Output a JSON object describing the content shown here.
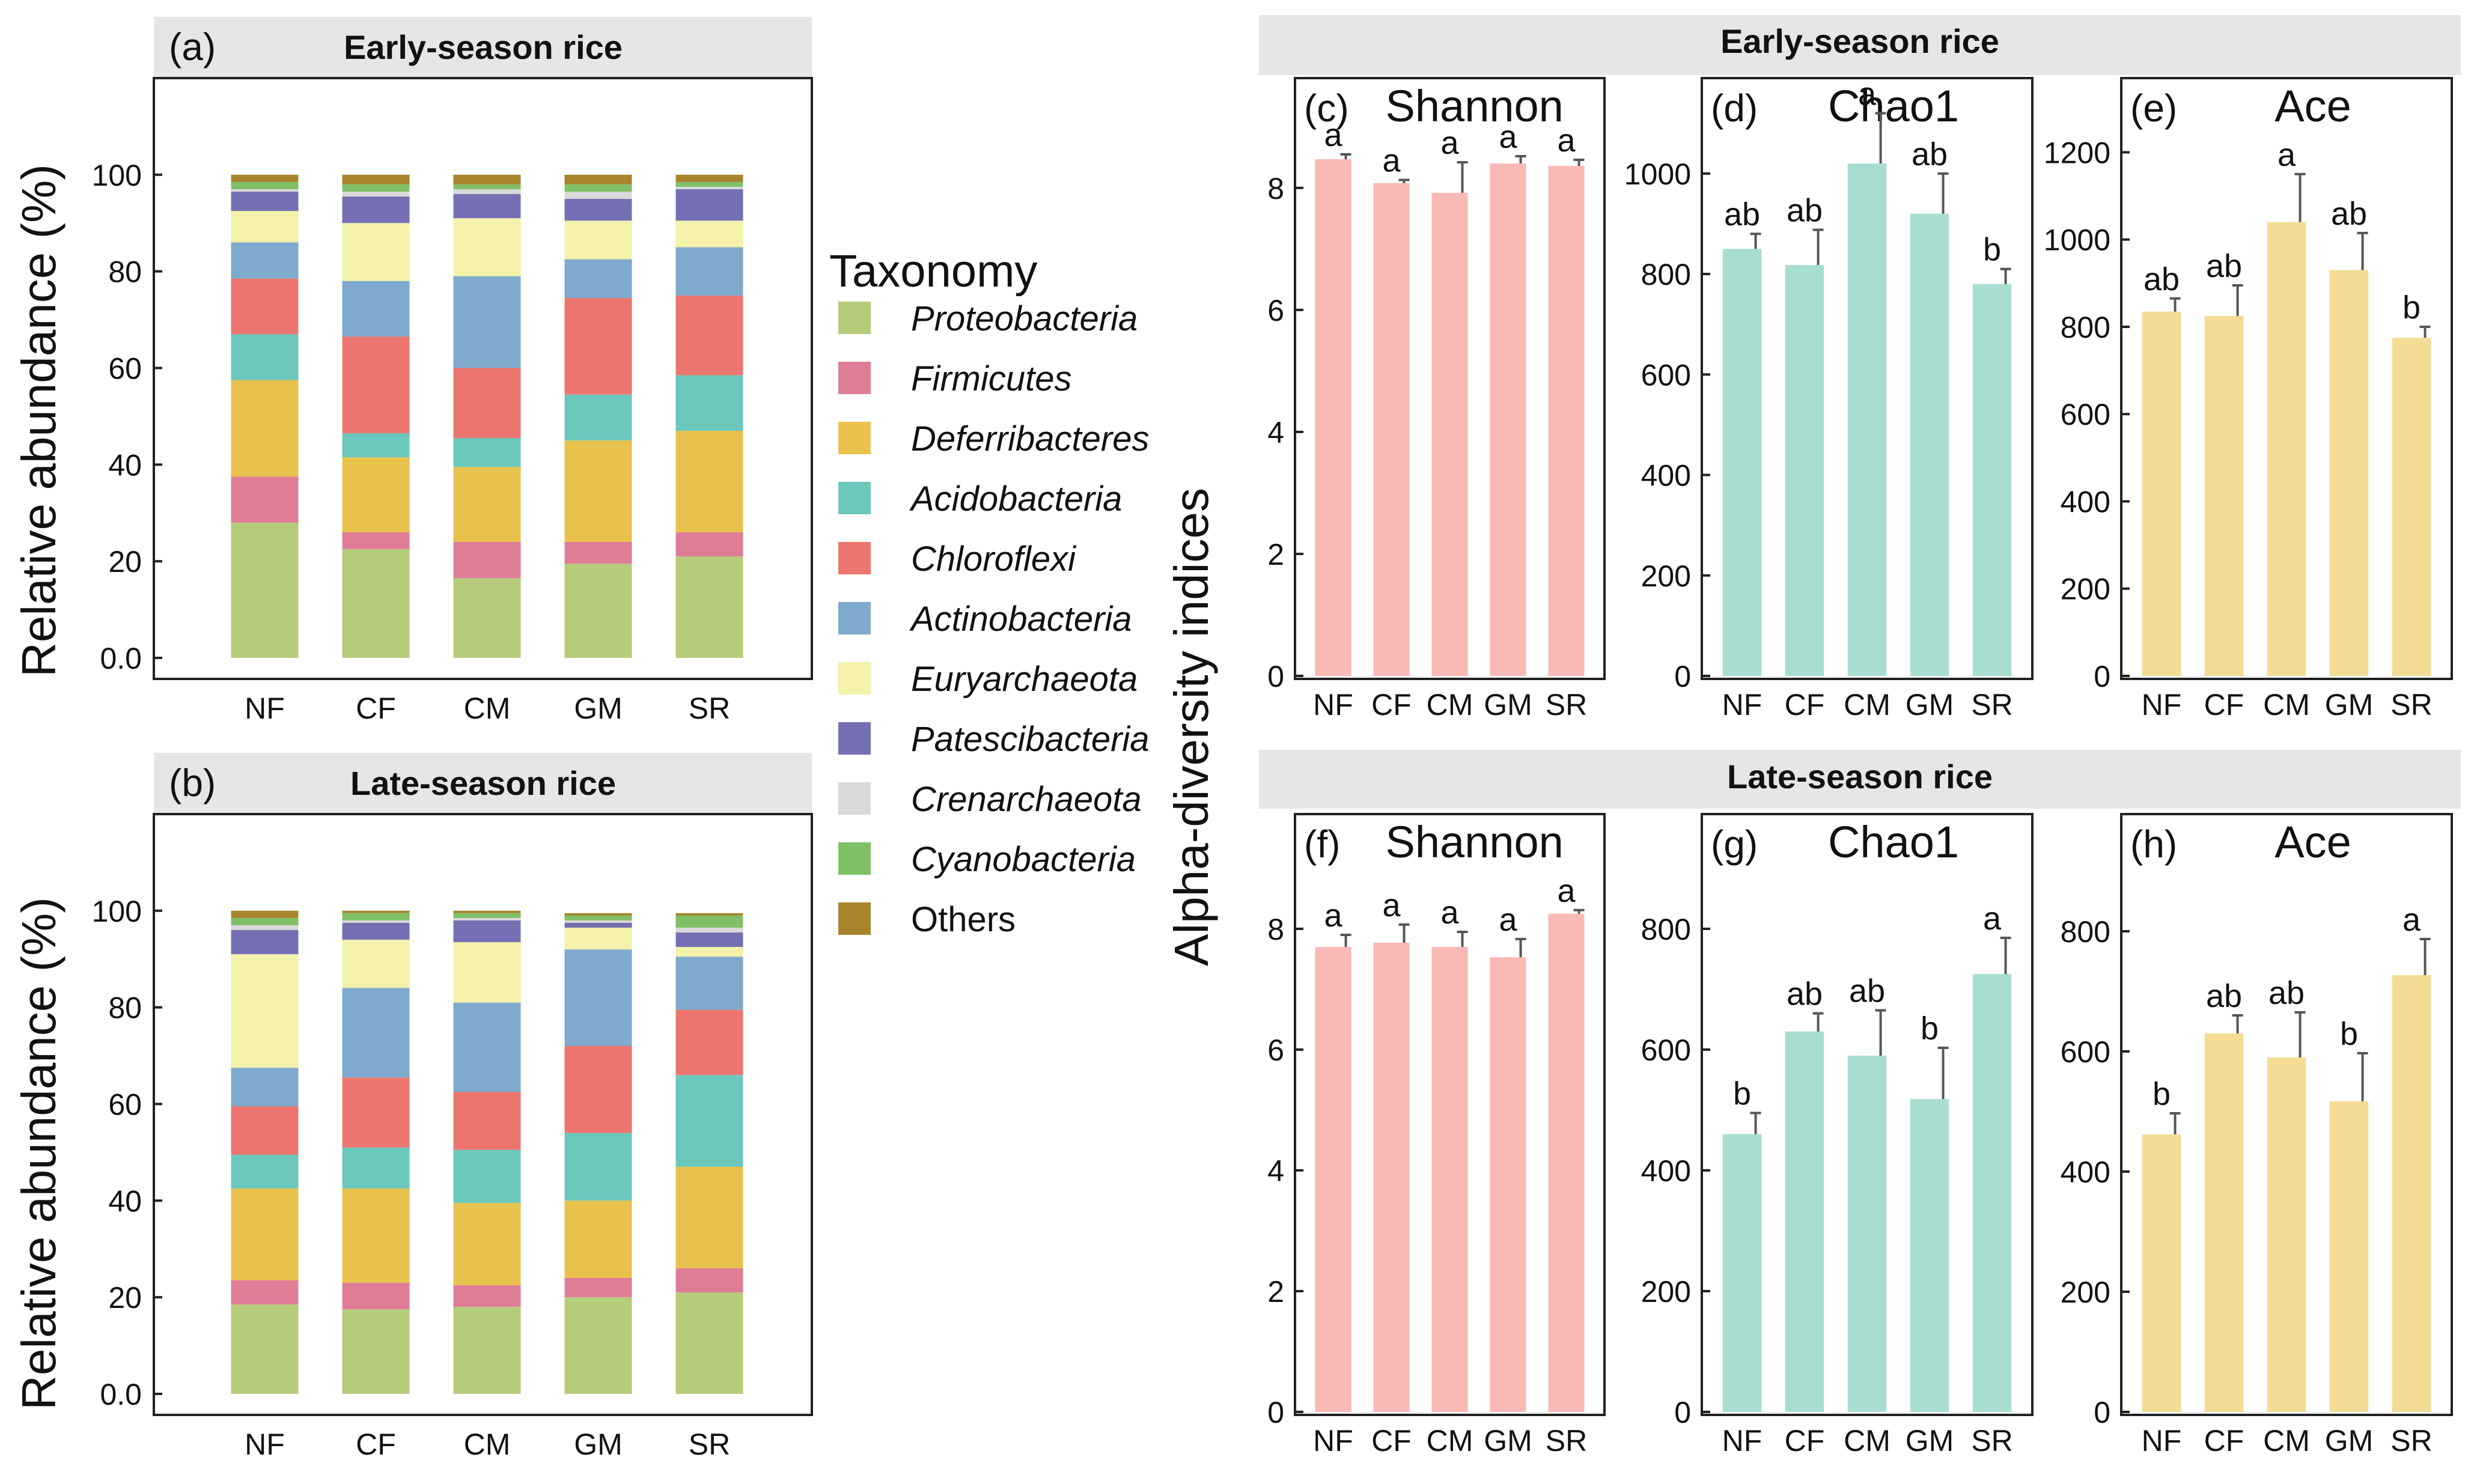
{
  "taxonomy_legend": {
    "title": "Taxonomy",
    "items": [
      {
        "name": "Proteobacteria",
        "color": "#b5cc7b",
        "italic": true
      },
      {
        "name": "Firmicutes",
        "color": "#df7d97",
        "italic": true
      },
      {
        "name": "Deferribacteres",
        "color": "#e9c24d",
        "italic": true
      },
      {
        "name": "Acidobacteria",
        "color": "#6cc7bb",
        "italic": true
      },
      {
        "name": "Chloroflexi",
        "color": "#ec766f",
        "italic": true
      },
      {
        "name": "Actinobacteria",
        "color": "#7fa9cd",
        "italic": true
      },
      {
        "name": "Euryarchaeota",
        "color": "#f4f1ab",
        "italic": true
      },
      {
        "name": "Patescibacteria",
        "color": "#7570b3",
        "italic": true
      },
      {
        "name": "Crenarchaeota",
        "color": "#d9d9d9",
        "italic": true
      },
      {
        "name": "Cyanobacteria",
        "color": "#7fc067",
        "italic": true
      },
      {
        "name": "Others",
        "color": "#a8842d",
        "italic": false
      }
    ]
  },
  "chart_data": [
    {
      "id": "a",
      "type": "bar",
      "stacked": true,
      "panel_label": "(a)",
      "title": "Early-season rice",
      "ylabel": "Relative abundance (%)",
      "categories": [
        "NF",
        "CF",
        "CM",
        "GM",
        "SR"
      ],
      "yticks": [
        "0.0",
        "20",
        "40",
        "60",
        "80",
        "100"
      ],
      "ylim": [
        0,
        120
      ],
      "series": [
        {
          "name": "Proteobacteria",
          "values": [
            28,
            22.5,
            16.5,
            19.5,
            21
          ]
        },
        {
          "name": "Firmicutes",
          "values": [
            9.5,
            3.5,
            7.5,
            4.5,
            5
          ]
        },
        {
          "name": "Deferribacteres",
          "values": [
            20,
            15.5,
            15.5,
            21,
            21
          ]
        },
        {
          "name": "Acidobacteria",
          "values": [
            9.5,
            5,
            6,
            9.5,
            11.5
          ]
        },
        {
          "name": "Chloroflexi",
          "values": [
            11.5,
            20,
            14.5,
            20,
            16.5
          ]
        },
        {
          "name": "Actinobacteria",
          "values": [
            7.5,
            11.5,
            19,
            8,
            10
          ]
        },
        {
          "name": "Euryarchaeota",
          "values": [
            6.5,
            12,
            12,
            8,
            5.5
          ]
        },
        {
          "name": "Patescibacteria",
          "values": [
            4,
            5.5,
            5,
            4.5,
            6.5
          ]
        },
        {
          "name": "Crenarchaeota",
          "values": [
            0.5,
            1,
            1,
            1.5,
            0.5
          ]
        },
        {
          "name": "Cyanobacteria",
          "values": [
            1.5,
            1.5,
            1,
            1.5,
            1
          ]
        },
        {
          "name": "Others",
          "values": [
            1.5,
            2,
            2,
            2,
            1.5
          ]
        }
      ]
    },
    {
      "id": "b",
      "type": "bar",
      "stacked": true,
      "panel_label": "(b)",
      "title": "Late-season rice",
      "ylabel": "Relative abundance (%)",
      "categories": [
        "NF",
        "CF",
        "CM",
        "GM",
        "SR"
      ],
      "yticks": [
        "0.0",
        "20",
        "40",
        "60",
        "80",
        "100"
      ],
      "ylim": [
        0,
        120
      ],
      "series": [
        {
          "name": "Proteobacteria",
          "values": [
            18.5,
            17.5,
            18,
            20,
            21
          ]
        },
        {
          "name": "Firmicutes",
          "values": [
            5,
            5.5,
            4.5,
            4,
            5
          ]
        },
        {
          "name": "Deferribacteres",
          "values": [
            19,
            19.5,
            17,
            16,
            21
          ]
        },
        {
          "name": "Acidobacteria",
          "values": [
            7,
            8.5,
            11,
            14,
            19
          ]
        },
        {
          "name": "Chloroflexi",
          "values": [
            10,
            14.5,
            12,
            18,
            13.5
          ]
        },
        {
          "name": "Actinobacteria",
          "values": [
            8,
            18.5,
            18.5,
            20,
            11
          ]
        },
        {
          "name": "Euryarchaeota",
          "values": [
            23.5,
            10,
            12.5,
            4.5,
            2
          ]
        },
        {
          "name": "Patescibacteria",
          "values": [
            5,
            3.5,
            4.5,
            1,
            3
          ]
        },
        {
          "name": "Crenarchaeota",
          "values": [
            1,
            0.5,
            0.5,
            0.5,
            1
          ]
        },
        {
          "name": "Cyanobacteria",
          "values": [
            1.5,
            1.5,
            1,
            1,
            2.5
          ]
        },
        {
          "name": "Others",
          "values": [
            1.5,
            0.5,
            0.5,
            0.5,
            0.5
          ]
        }
      ]
    },
    {
      "id": "c",
      "type": "bar",
      "panel_label": "(c)",
      "title": "Shannon",
      "group": "Early-season rice",
      "color": "#f9b9b5",
      "categories": [
        "NF",
        "CF",
        "CM",
        "GM",
        "SR"
      ],
      "yticks": [
        "0",
        "2",
        "4",
        "6",
        "8"
      ],
      "ylim": [
        0,
        9.8
      ],
      "values": [
        8.47,
        8.08,
        7.92,
        8.4,
        8.36
      ],
      "errors": [
        0.08,
        0.05,
        0.5,
        0.12,
        0.1
      ],
      "sig": [
        "a",
        "a",
        "a",
        "a",
        "a"
      ]
    },
    {
      "id": "d",
      "type": "bar",
      "panel_label": "(d)",
      "title": "Chao1",
      "group": "Early-season rice",
      "color": "#a8ddd2",
      "categories": [
        "NF",
        "CF",
        "CM",
        "GM",
        "SR"
      ],
      "yticks": [
        "0",
        "200",
        "400",
        "600",
        "800",
        "1000"
      ],
      "ylim": [
        0,
        1190
      ],
      "values": [
        850,
        818,
        1020,
        920,
        780
      ],
      "errors": [
        30,
        70,
        100,
        80,
        30
      ],
      "sig": [
        "ab",
        "ab",
        "a",
        "ab",
        "b"
      ]
    },
    {
      "id": "e",
      "type": "bar",
      "panel_label": "(e)",
      "title": "Ace",
      "group": "Early-season rice",
      "color": "#f4dc95",
      "categories": [
        "NF",
        "CF",
        "CM",
        "GM",
        "SR"
      ],
      "yticks": [
        "0",
        "200",
        "400",
        "600",
        "800",
        "1000",
        "1200"
      ],
      "ylim": [
        0,
        1370
      ],
      "values": [
        835,
        825,
        1040,
        930,
        775
      ],
      "errors": [
        30,
        70,
        110,
        85,
        25
      ],
      "sig": [
        "ab",
        "ab",
        "a",
        "ab",
        "b"
      ]
    },
    {
      "id": "f",
      "type": "bar",
      "panel_label": "(f)",
      "title": "Shannon",
      "group": "Late-season rice",
      "color": "#f9b9b5",
      "categories": [
        "NF",
        "CF",
        "CM",
        "GM",
        "SR"
      ],
      "yticks": [
        "0",
        "2",
        "4",
        "6",
        "8"
      ],
      "ylim": [
        0,
        9.9
      ],
      "values": [
        7.7,
        7.77,
        7.7,
        7.53,
        8.25
      ],
      "errors": [
        0.2,
        0.3,
        0.25,
        0.3,
        0.06
      ],
      "sig": [
        "a",
        "a",
        "a",
        "a",
        "a"
      ]
    },
    {
      "id": "g",
      "type": "bar",
      "panel_label": "(g)",
      "title": "Chao1",
      "group": "Late-season rice",
      "color": "#a8ddd2",
      "categories": [
        "NF",
        "CF",
        "CM",
        "GM",
        "SR"
      ],
      "yticks": [
        "0",
        "200",
        "400",
        "600",
        "800"
      ],
      "ylim": [
        0,
        990
      ],
      "values": [
        460,
        630,
        590,
        518,
        725
      ],
      "errors": [
        35,
        30,
        75,
        85,
        60
      ],
      "sig": [
        "b",
        "ab",
        "ab",
        "b",
        "a"
      ]
    },
    {
      "id": "h",
      "type": "bar",
      "panel_label": "(h)",
      "title": "Ace",
      "group": "Late-season rice",
      "color": "#f4dc95",
      "categories": [
        "NF",
        "CF",
        "CM",
        "GM",
        "SR"
      ],
      "yticks": [
        "0",
        "200",
        "400",
        "600",
        "800"
      ],
      "ylim": [
        0,
        995
      ],
      "values": [
        462,
        630,
        590,
        517,
        727
      ],
      "errors": [
        35,
        30,
        75,
        80,
        60
      ],
      "sig": [
        "b",
        "ab",
        "ab",
        "b",
        "a"
      ]
    }
  ],
  "alpha_ylabel": "Alpha-diversity indices",
  "group_headers": {
    "early": "Early-season rice",
    "late": "Late-season rice"
  }
}
